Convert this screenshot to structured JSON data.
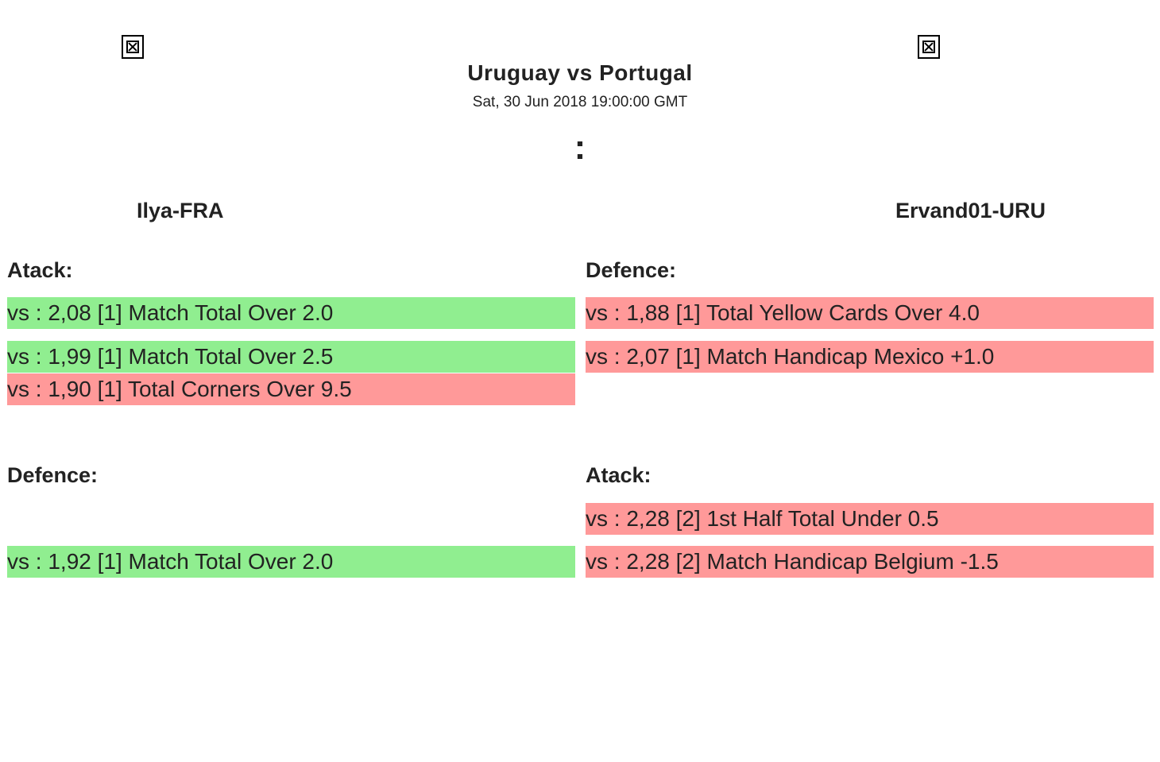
{
  "match": {
    "title": "Uruguay vs Portugal",
    "date": "Sat, 30 Jun 2018 19:00:00 GMT",
    "score_separator": ":"
  },
  "icons": {
    "left_team_flag": "broken-image-icon",
    "right_team_flag": "broken-image-icon"
  },
  "colors": {
    "win": "#90ee90",
    "loss": "#ff9999"
  },
  "left": {
    "player": "Ilya-FRA",
    "top_label": "Atack:",
    "top_bets": [
      {
        "text": "vs : 2,08 [1] Match Total Over 2.0",
        "status": "win"
      },
      {
        "text": "vs : 1,99 [1] Match Total Over 2.5",
        "status": "win"
      },
      {
        "text": "vs : 1,90 [1] Total Corners Over 9.5",
        "status": "loss"
      }
    ],
    "bottom_label": "Defence:",
    "bottom_bets": [
      {
        "text": "vs : 1,92 [1] Match Total Over 2.0",
        "status": "win"
      }
    ]
  },
  "right": {
    "player": "Ervand01-URU",
    "top_label": "Defence:",
    "top_bets": [
      {
        "text": "vs : 1,88 [1] Total Yellow Cards Over 4.0",
        "status": "loss"
      },
      {
        "text": "vs : 2,07 [1] Match Handicap Mexico +1.0",
        "status": "loss"
      }
    ],
    "bottom_label": "Atack:",
    "bottom_bets": [
      {
        "text": "vs : 2,28 [2] 1st Half Total Under 0.5",
        "status": "loss"
      },
      {
        "text": "vs : 2,28 [2] Match Handicap Belgium -1.5",
        "status": "loss"
      }
    ]
  }
}
